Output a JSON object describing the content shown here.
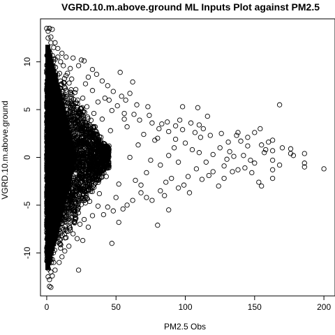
{
  "chart_data": {
    "type": "scatter",
    "title": "VGRD.10.m.above.ground ML Inputs Plot against PM2.5",
    "xlabel": "PM2.5 Obs",
    "ylabel": "VGRD.10.m.above.ground",
    "xlim": [
      -4.5,
      208
    ],
    "ylim": [
      -14.5,
      14.5
    ],
    "x_ticks": [
      0,
      50,
      100,
      150,
      200
    ],
    "y_ticks": [
      -10,
      -5,
      0,
      5,
      10
    ],
    "x_tick_labels": [
      "0",
      "50",
      "100",
      "150",
      "200"
    ],
    "y_tick_labels": [
      "-10",
      "-5",
      "0",
      "5",
      "10"
    ],
    "grid": false,
    "marker": "open-circle",
    "point_color": "#000000",
    "dense_core": {
      "description_points": [
        [
          0,
          13.5
        ],
        [
          2,
          13.5
        ],
        [
          1,
          12.5
        ],
        [
          3,
          12.0
        ],
        [
          5,
          11.5
        ],
        [
          8,
          10.5
        ],
        [
          10,
          10.0
        ],
        [
          1,
          -12.5
        ],
        [
          3,
          -12.0
        ],
        [
          2,
          -13.5
        ],
        [
          5,
          -11.0
        ],
        [
          10,
          -9.5
        ]
      ]
    },
    "points": [
      [
        2,
        13.5
      ],
      [
        4,
        13.4
      ],
      [
        1,
        13.2
      ],
      [
        3,
        12.6
      ],
      [
        6,
        12.0
      ],
      [
        8,
        11.4
      ],
      [
        11,
        10.9
      ],
      [
        14,
        10.5
      ],
      [
        19,
        10.4
      ],
      [
        25,
        10.2
      ],
      [
        27,
        10.1
      ],
      [
        23,
        9.6
      ],
      [
        17,
        9.3
      ],
      [
        33,
        9.2
      ],
      [
        36,
        8.7
      ],
      [
        30,
        8.4
      ],
      [
        53,
        8.9
      ],
      [
        40,
        8.0
      ],
      [
        28,
        7.7
      ],
      [
        44,
        7.5
      ],
      [
        33,
        7.0
      ],
      [
        48,
        6.9
      ],
      [
        54,
        6.4
      ],
      [
        42,
        6.2
      ],
      [
        60,
        6.7
      ],
      [
        57,
        6.0
      ],
      [
        62,
        7.9
      ],
      [
        37,
        5.8
      ],
      [
        65,
        5.5
      ],
      [
        74,
        4.4
      ],
      [
        73,
        5.3
      ],
      [
        51,
        5.4
      ],
      [
        47,
        4.9
      ],
      [
        56,
        4.6
      ],
      [
        63,
        4.5
      ],
      [
        67,
        3.9
      ],
      [
        81,
        3.0
      ],
      [
        76,
        3.6
      ],
      [
        83,
        3.5
      ],
      [
        87,
        3.7
      ],
      [
        96,
        3.9
      ],
      [
        88,
        2.7
      ],
      [
        93,
        3.3
      ],
      [
        98,
        2.9
      ],
      [
        104,
        3.6
      ],
      [
        110,
        3.4
      ],
      [
        107,
        2.6
      ],
      [
        116,
        4.3
      ],
      [
        109,
        5.2
      ],
      [
        98,
        5.3
      ],
      [
        118,
        2.3
      ],
      [
        111,
        2.1
      ],
      [
        126,
        2.5
      ],
      [
        131,
        1.6
      ],
      [
        137,
        2.3
      ],
      [
        140,
        1.7
      ],
      [
        145,
        2.1
      ],
      [
        154,
        3.0
      ],
      [
        155,
        1.3
      ],
      [
        157,
        0.5
      ],
      [
        168,
        5.5
      ],
      [
        163,
        1.8
      ],
      [
        163,
        0.7
      ],
      [
        163,
        -0.3
      ],
      [
        163,
        -1.3
      ],
      [
        163,
        -2.2
      ],
      [
        170,
        1.0
      ],
      [
        176,
        0.9
      ],
      [
        186,
        0.4
      ],
      [
        186,
        -0.6
      ],
      [
        186,
        -1.0
      ],
      [
        200,
        -1.2
      ],
      [
        147,
        -0.3
      ],
      [
        148,
        -1.6
      ],
      [
        153,
        -2.6
      ],
      [
        155,
        -3.0
      ],
      [
        138,
        -1.3
      ],
      [
        134,
        -1.5
      ],
      [
        128,
        -0.9
      ],
      [
        124,
        -3.0
      ],
      [
        117,
        -1.9
      ],
      [
        112,
        -2.3
      ],
      [
        108,
        -1.2
      ],
      [
        102,
        -2.0
      ],
      [
        99,
        -2.9
      ],
      [
        95,
        -3.2
      ],
      [
        90,
        -2.2
      ],
      [
        86,
        -2.6
      ],
      [
        82,
        -3.5
      ],
      [
        85,
        -4.0
      ],
      [
        88,
        -5.5
      ],
      [
        80,
        -7.1
      ],
      [
        76,
        -4.5
      ],
      [
        72,
        -4.2
      ],
      [
        68,
        -3.7
      ],
      [
        62,
        -4.5
      ],
      [
        58,
        -5.0
      ],
      [
        55,
        -5.4
      ],
      [
        52,
        -6.8
      ],
      [
        48,
        -5.6
      ],
      [
        44,
        -5.2
      ],
      [
        41,
        -6.0
      ],
      [
        37,
        -5.1
      ],
      [
        33,
        -6.1
      ],
      [
        30,
        -7.3
      ],
      [
        27,
        -6.5
      ],
      [
        24,
        -7.0
      ],
      [
        47,
        -9.0
      ],
      [
        26,
        -8.7
      ],
      [
        22,
        -8.5
      ],
      [
        19,
        -8.0
      ],
      [
        16,
        -9.3
      ],
      [
        13,
        -9.8
      ],
      [
        11,
        -10.4
      ],
      [
        23,
        -11.8
      ],
      [
        9,
        -11.0
      ],
      [
        6,
        -11.8
      ],
      [
        4,
        -12.4
      ],
      [
        2,
        -12.8
      ],
      [
        3,
        -13.6
      ],
      [
        120,
        0.3
      ],
      [
        125,
        1.0
      ],
      [
        132,
        0.6
      ],
      [
        142,
        0.2
      ],
      [
        150,
        -0.6
      ],
      [
        143,
        -1.1
      ],
      [
        115,
        -0.5
      ],
      [
        105,
        0.8
      ],
      [
        100,
        1.5
      ],
      [
        92,
        1.0
      ],
      [
        88,
        0.2
      ],
      [
        82,
        -0.8
      ],
      [
        78,
        1.8
      ],
      [
        70,
        2.4
      ],
      [
        66,
        1.3
      ],
      [
        72,
        -1.6
      ],
      [
        64,
        -2.4
      ],
      [
        58,
        3.2
      ],
      [
        52,
        -2.8
      ],
      [
        46,
        2.8
      ],
      [
        40,
        4.0
      ],
      [
        38,
        -3.8
      ],
      [
        34,
        4.6
      ],
      [
        31,
        -4.6
      ],
      [
        45,
        6.0
      ],
      [
        29,
        5.3
      ],
      [
        26,
        6.2
      ],
      [
        21,
        7.1
      ],
      [
        18,
        8.2
      ],
      [
        15,
        8.8
      ],
      [
        12,
        9.6
      ],
      [
        20,
        -6.7
      ],
      [
        17,
        -7.6
      ],
      [
        14,
        -8.4
      ],
      [
        35,
        3.2
      ],
      [
        43,
        -2.0
      ],
      [
        60,
        0.0
      ],
      [
        75,
        -0.3
      ],
      [
        95,
        -0.5
      ],
      [
        110,
        0.5
      ],
      [
        130,
        -0.2
      ],
      [
        158,
        0.8
      ],
      [
        176,
        0.4
      ],
      [
        168,
        -0.8
      ],
      [
        150,
        2.6
      ],
      [
        138,
        2.6
      ],
      [
        128,
        -2.2
      ],
      [
        103,
        -3.7
      ],
      [
        93,
        1.9
      ],
      [
        80,
        2.0
      ],
      [
        68,
        -2.9
      ],
      [
        56,
        4.0
      ],
      [
        50,
        -4.2
      ],
      [
        120,
        -1.5
      ],
      [
        113,
        3.0
      ],
      [
        135,
        0.1
      ],
      [
        145,
        1.2
      ],
      [
        160,
        1.6
      ],
      [
        178,
        0.2
      ]
    ]
  }
}
